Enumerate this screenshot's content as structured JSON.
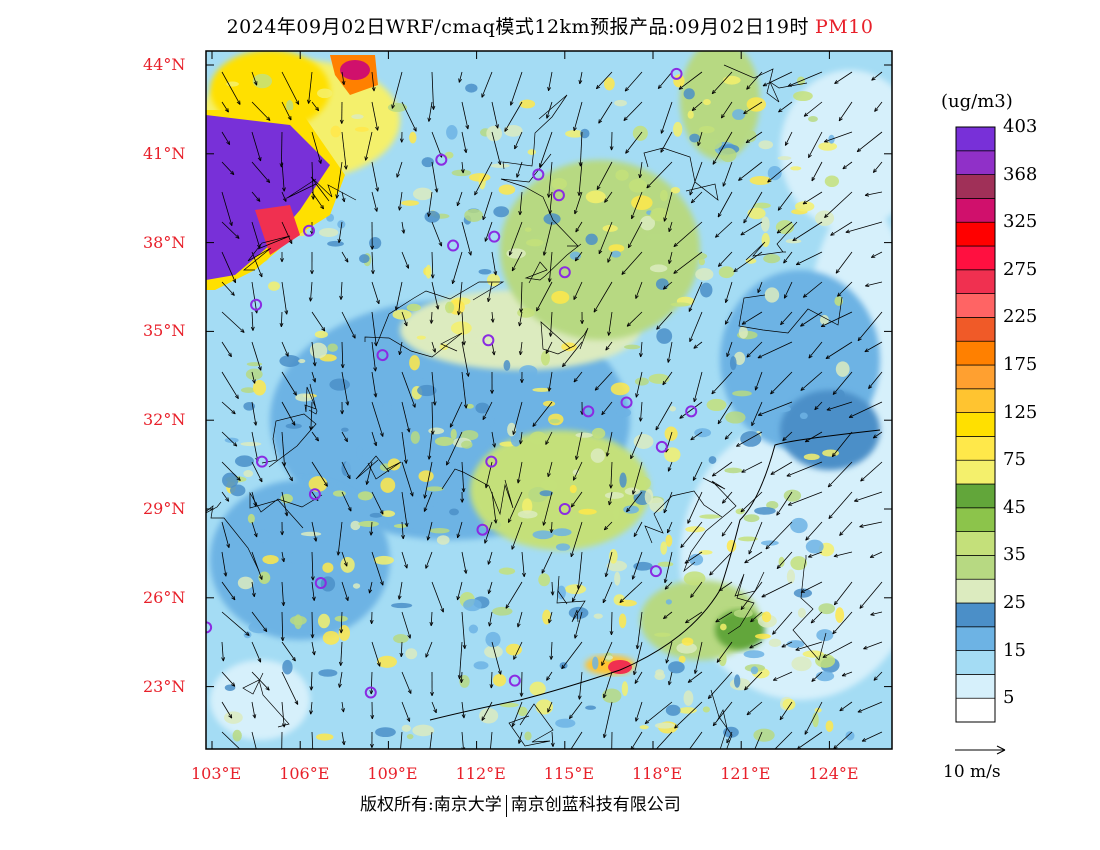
{
  "title": {
    "main": "2024年09月02日WRF/cmaq模式12km预报产品:09月02日19时",
    "pollutant": "PM10"
  },
  "colorbar": {
    "unit": "(ug/m3)",
    "colors": [
      "#ffffff",
      "#d6f0fb",
      "#a4dcf4",
      "#6db3e4",
      "#4b8fc8",
      "#dcebbf",
      "#b7d982",
      "#c4e07a",
      "#8cc44b",
      "#62a63a",
      "#f4f06c",
      "#ffe84a",
      "#ffe000",
      "#ffc430",
      "#ffa030",
      "#ff8000",
      "#f05a28",
      "#ff6464",
      "#f03050",
      "#ff1040",
      "#ff0000",
      "#d0106c",
      "#a03058",
      "#9030c8",
      "#7830d8"
    ],
    "labels": [
      "5",
      "15",
      "25",
      "35",
      "45",
      "75",
      "125",
      "175",
      "225",
      "275",
      "325",
      "368",
      "403"
    ]
  },
  "axes": {
    "lat_labels": [
      "44°N",
      "41°N",
      "38°N",
      "35°N",
      "32°N",
      "29°N",
      "26°N",
      "23°N"
    ],
    "lon_labels": [
      "103°E",
      "106°E",
      "109°E",
      "112°E",
      "115°E",
      "118°E",
      "121°E",
      "124°E"
    ]
  },
  "stations": [
    {
      "lon": 118.8,
      "lat": 43.7
    },
    {
      "lon": 110.8,
      "lat": 40.8
    },
    {
      "lon": 114.1,
      "lat": 40.3
    },
    {
      "lon": 114.8,
      "lat": 39.6
    },
    {
      "lon": 106.3,
      "lat": 38.4
    },
    {
      "lon": 111.2,
      "lat": 37.9
    },
    {
      "lon": 112.6,
      "lat": 38.2
    },
    {
      "lon": 115.0,
      "lat": 37.0
    },
    {
      "lon": 104.5,
      "lat": 35.9
    },
    {
      "lon": 108.8,
      "lat": 34.2
    },
    {
      "lon": 112.4,
      "lat": 34.7
    },
    {
      "lon": 117.1,
      "lat": 32.6
    },
    {
      "lon": 115.8,
      "lat": 32.3
    },
    {
      "lon": 119.3,
      "lat": 32.3
    },
    {
      "lon": 118.3,
      "lat": 31.1
    },
    {
      "lon": 104.7,
      "lat": 30.6
    },
    {
      "lon": 112.5,
      "lat": 30.6
    },
    {
      "lon": 106.5,
      "lat": 29.5
    },
    {
      "lon": 115.0,
      "lat": 29.0
    },
    {
      "lon": 112.2,
      "lat": 28.3
    },
    {
      "lon": 106.7,
      "lat": 26.5
    },
    {
      "lon": 118.1,
      "lat": 26.9
    },
    {
      "lon": 102.8,
      "lat": 25.0
    },
    {
      "lon": 108.4,
      "lat": 22.8
    },
    {
      "lon": 113.3,
      "lat": 23.2
    }
  ],
  "vector_reference": {
    "label": "10 m/s"
  },
  "footer": {
    "left": "版权所有:南京大学",
    "right": "南京创蓝科技有限公司"
  }
}
